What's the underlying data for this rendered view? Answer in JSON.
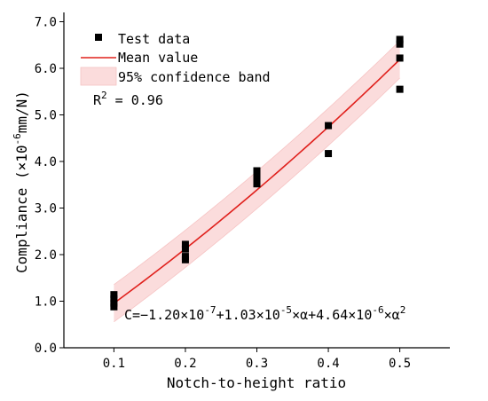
{
  "chart_data": {
    "type": "scatter",
    "xlabel": "Notch-to-height ratio",
    "ylabel_main": "Compliance (×10",
    "ylabel_exp": "-6",
    "ylabel_tail": "mm/N)",
    "xlim": [
      0.03,
      0.57
    ],
    "ylim": [
      0.0,
      7.2
    ],
    "xticks": [
      0.1,
      0.2,
      0.3,
      0.4,
      0.5
    ],
    "xtick_labels": [
      "0.1",
      "0.2",
      "0.3",
      "0.4",
      "0.5"
    ],
    "yticks": [
      0.0,
      1.0,
      2.0,
      3.0,
      4.0,
      5.0,
      6.0,
      7.0
    ],
    "ytick_labels": [
      "0.0",
      "1.0",
      "2.0",
      "3.0",
      "4.0",
      "5.0",
      "6.0",
      "7.0"
    ],
    "grid": false,
    "legend_position": "top-left",
    "legend": {
      "test_data": "Test data",
      "mean_value": "Mean value",
      "band": "95% confidence band"
    },
    "r2_label": "R",
    "r2_exp": "2",
    "r2_value": " = 0.96",
    "equation": {
      "p1": "C=−1.20×10",
      "e1": "-7",
      "p2": "+1.03×10",
      "e2": "-5",
      "p3": "×α+4.64×10",
      "e3": "-6",
      "p4": "×α",
      "e4": "2"
    },
    "test_data": [
      {
        "x": 0.1,
        "y": 1.14
      },
      {
        "x": 0.1,
        "y": 1.05
      },
      {
        "x": 0.1,
        "y": 0.96
      },
      {
        "x": 0.1,
        "y": 0.88
      },
      {
        "x": 0.2,
        "y": 2.22
      },
      {
        "x": 0.2,
        "y": 2.12
      },
      {
        "x": 0.2,
        "y": 1.96
      },
      {
        "x": 0.2,
        "y": 1.89
      },
      {
        "x": 0.3,
        "y": 3.8
      },
      {
        "x": 0.3,
        "y": 3.68
      },
      {
        "x": 0.3,
        "y": 3.58
      },
      {
        "x": 0.3,
        "y": 3.52
      },
      {
        "x": 0.4,
        "y": 4.77
      },
      {
        "x": 0.4,
        "y": 4.17
      },
      {
        "x": 0.5,
        "y": 6.62
      },
      {
        "x": 0.5,
        "y": 6.52
      },
      {
        "x": 0.5,
        "y": 6.22
      },
      {
        "x": 0.5,
        "y": 5.55
      }
    ],
    "mean_curve": {
      "coefficients": {
        "c0": -1.2e-07,
        "c1": 1.03e-05,
        "c2": 4.64e-06
      },
      "scale": 1e-06,
      "x_range": [
        0.1,
        0.5
      ]
    },
    "band_half_width": 0.4,
    "colors": {
      "mean_line": "#e0201c",
      "band_fill": "#fbdcdc",
      "band_edge": "#f6c4c4",
      "marker": "#000000",
      "axis": "#000000"
    }
  }
}
